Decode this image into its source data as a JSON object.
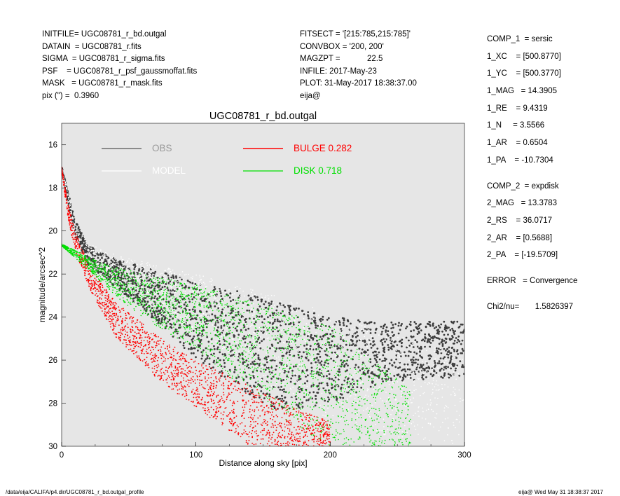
{
  "header_left": [
    "INITFILE= UGC08781_r_bd.outgal",
    "DATAIN  = UGC08781_r.fits",
    "SIGMA  = UGC08781_r_sigma.fits",
    "PSF    = UGC08781_r_psf_gaussmoffat.fits",
    "MASK   = UGC08781_r_mask.fits",
    "pix (\") =  0.3960"
  ],
  "header_mid": [
    "FITSECT = '[215:785,215:785]'",
    "CONVBOX = '200, 200'",
    "MAGZPT =            22.5",
    "INFILE: 2017-May-23",
    "PLOT: 31-May-2017 18:38:37.00",
    "eija@"
  ],
  "params": [
    "COMP_1  = sersic",
    "1_XC    = [500.8770]",
    "1_YC    = [500.3770]",
    "1_MAG   = 14.3905",
    "1_RE    = 9.4319",
    "1_N     = 3.5566",
    "1_AR    = 0.6504",
    "1_PA    = -10.7304",
    "",
    "COMP_2  = expdisk",
    "2_MAG   = 13.3783",
    "2_RS    = 36.0717",
    "2_AR    = [0.5688]",
    "2_PA    = [-19.5709]",
    "",
    "ERROR   = Convergence",
    "",
    "Chi2/nu=       1.5826397"
  ],
  "footer_left": "/data/eija/CALIFA/p4.dir/UGC08781_r_bd.outgal_profile",
  "footer_right": "eija@  Wed May 31 18:38:37 2017",
  "chart_data": {
    "type": "scatter",
    "title": "UGC08781_r_bd.outgal",
    "xlabel": "Distance along sky [pix]",
    "ylabel": "magnitude/arcsec^2",
    "xlim": [
      0,
      300
    ],
    "ylim": [
      30,
      15
    ],
    "y_inverted": true,
    "x_ticks": [
      "0",
      "100",
      "200",
      "300"
    ],
    "y_ticks": [
      "16",
      "18",
      "20",
      "22",
      "24",
      "26",
      "28",
      "30"
    ],
    "background": "#e6e6e6",
    "legend": [
      {
        "label": "OBS",
        "color": "#555555"
      },
      {
        "label": "MODEL",
        "color": "#ffffff"
      },
      {
        "label": "BULGE  0.282",
        "color": "#ff0000"
      },
      {
        "label": "DISK  0.718",
        "color": "#00e000"
      }
    ],
    "series": [
      {
        "name": "OBS",
        "color": "#3c3c3c",
        "upper_envelope": [
          [
            0,
            17.0
          ],
          [
            10,
            19.5
          ],
          [
            20,
            20.7
          ],
          [
            40,
            21.3
          ],
          [
            80,
            22.0
          ],
          [
            120,
            22.6
          ],
          [
            160,
            23.3
          ],
          [
            200,
            24.0
          ],
          [
            240,
            24.2
          ],
          [
            300,
            24.2
          ]
        ],
        "lower_envelope": [
          [
            0,
            17.2
          ],
          [
            10,
            20.3
          ],
          [
            20,
            21.6
          ],
          [
            40,
            22.6
          ],
          [
            60,
            23.6
          ],
          [
            80,
            24.8
          ],
          [
            100,
            26.0
          ],
          [
            130,
            27.2
          ],
          [
            160,
            28.4
          ],
          [
            200,
            28.0
          ],
          [
            240,
            27.0
          ],
          [
            300,
            26.8
          ]
        ]
      },
      {
        "name": "MODEL",
        "color": "#ffffff",
        "upper_envelope": [
          [
            0,
            17.0
          ],
          [
            10,
            19.6
          ],
          [
            20,
            20.6
          ],
          [
            40,
            21.1
          ],
          [
            100,
            22.0
          ],
          [
            160,
            23.0
          ],
          [
            220,
            24.2
          ],
          [
            300,
            25.8
          ]
        ],
        "lower_envelope": [
          [
            0,
            17.2
          ],
          [
            10,
            20.6
          ],
          [
            20,
            21.6
          ],
          [
            40,
            22.5
          ],
          [
            80,
            23.9
          ],
          [
            120,
            25.6
          ],
          [
            160,
            27.4
          ],
          [
            200,
            28.8
          ],
          [
            240,
            29.5
          ],
          [
            300,
            30.0
          ]
        ]
      },
      {
        "name": "BULGE",
        "color": "#ff0000",
        "upper_envelope": [
          [
            0,
            17.0
          ],
          [
            5,
            18.8
          ],
          [
            10,
            20.0
          ],
          [
            20,
            21.6
          ],
          [
            40,
            23.3
          ],
          [
            70,
            24.8
          ],
          [
            100,
            26.0
          ],
          [
            140,
            27.2
          ],
          [
            180,
            28.4
          ],
          [
            250,
            30.0
          ]
        ],
        "lower_envelope": [
          [
            0,
            17.2
          ],
          [
            5,
            19.5
          ],
          [
            10,
            20.9
          ],
          [
            20,
            22.6
          ],
          [
            40,
            24.9
          ],
          [
            70,
            26.8
          ],
          [
            100,
            28.2
          ],
          [
            125,
            29.3
          ],
          [
            140,
            30.0
          ]
        ]
      },
      {
        "name": "DISK",
        "color": "#00e000",
        "upper_envelope": [
          [
            0,
            20.6
          ],
          [
            30,
            21.5
          ],
          [
            60,
            22.0
          ],
          [
            100,
            22.5
          ],
          [
            150,
            23.4
          ],
          [
            200,
            24.4
          ],
          [
            250,
            26.8
          ],
          [
            300,
            29.6
          ]
        ],
        "lower_envelope": [
          [
            0,
            20.7
          ],
          [
            20,
            21.8
          ],
          [
            40,
            23.0
          ],
          [
            60,
            24.0
          ],
          [
            100,
            25.5
          ],
          [
            160,
            28.5
          ],
          [
            200,
            30.0
          ]
        ]
      }
    ]
  }
}
